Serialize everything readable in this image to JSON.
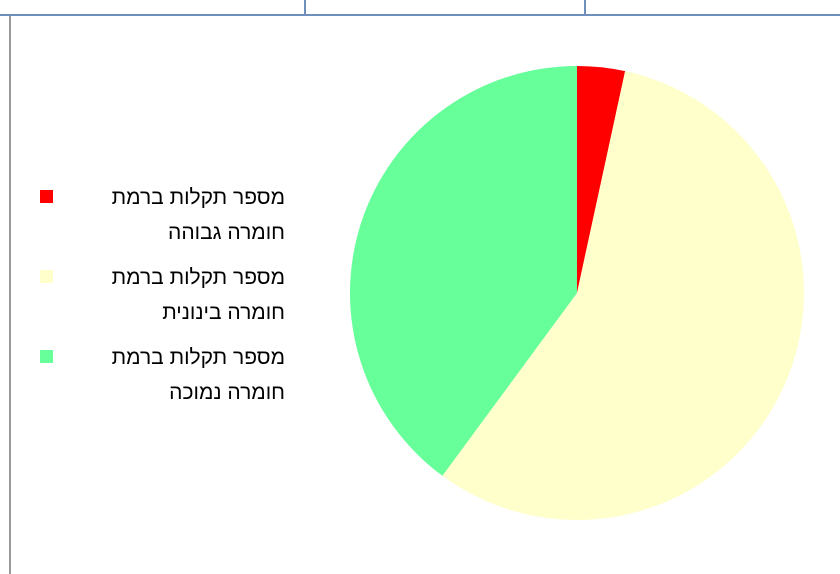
{
  "chart_data": {
    "type": "pie",
    "categories": [
      "מספר תקלות ברמת חומרה גבוהה",
      "מספר תקלות ברמת חומרה בינונית",
      "מספר תקלות ברמת חומרה נמוכה"
    ],
    "values": [
      3.4,
      56.7,
      39.9
    ],
    "colors": [
      "#ff0000",
      "#ffffcc",
      "#66ff99"
    ]
  }
}
